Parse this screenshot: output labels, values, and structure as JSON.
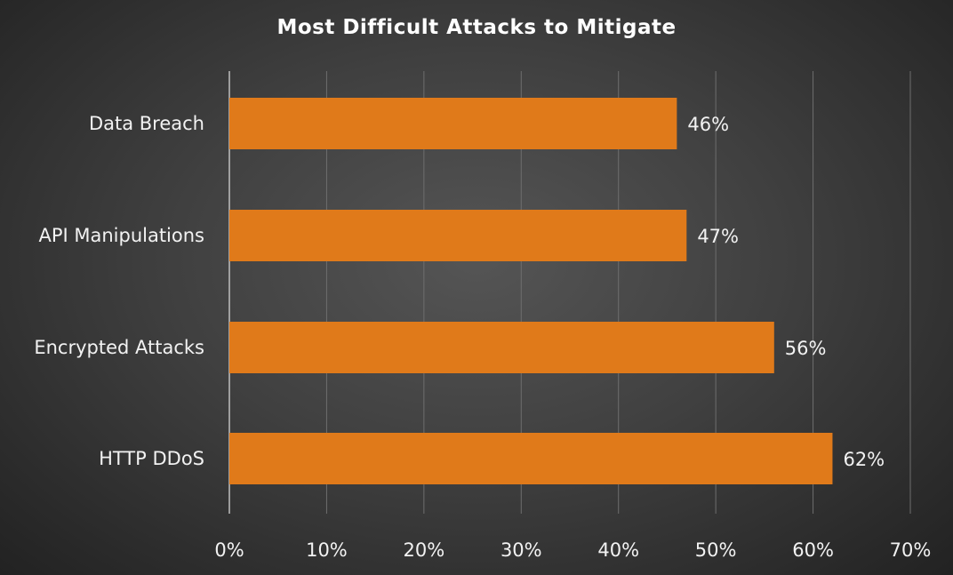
{
  "chart_data": {
    "type": "bar",
    "orientation": "horizontal",
    "title": "Most Difficult Attacks to Mitigate",
    "categories": [
      "Data Breach",
      "API Manipulations",
      "Encrypted Attacks",
      "HTTP DDoS"
    ],
    "values": [
      46,
      47,
      56,
      62
    ],
    "data_labels": [
      "46%",
      "47%",
      "56%",
      "62%"
    ],
    "xlim": [
      0,
      70
    ],
    "xticks": [
      0,
      10,
      20,
      30,
      40,
      50,
      60,
      70
    ],
    "xtick_labels": [
      "0%",
      "10%",
      "20%",
      "30%",
      "40%",
      "50%",
      "60%",
      "70%"
    ],
    "xlabel": "",
    "ylabel": "",
    "grid": "vertical",
    "legend": "none",
    "colors": {
      "bar": "#E07A1A",
      "grid": "#6e6e6e",
      "axis": "#bfbfbf",
      "text": "#f2f2f2"
    }
  }
}
